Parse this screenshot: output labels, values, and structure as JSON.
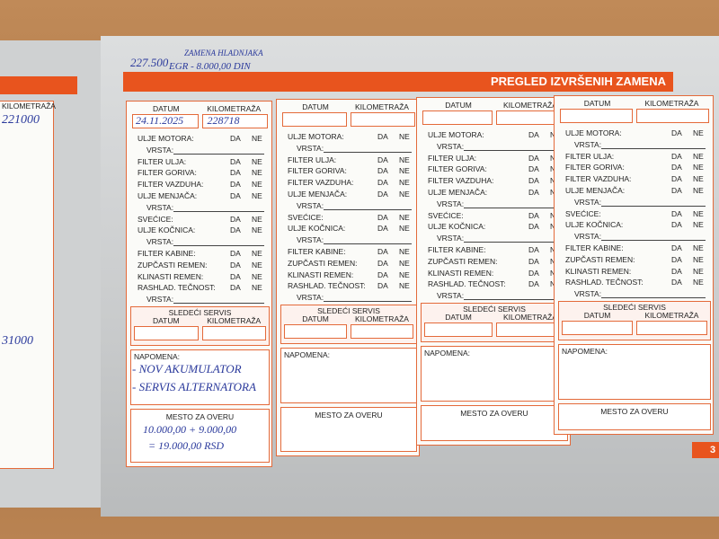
{
  "header": {
    "title": "PREGLED IZVRŠENIH ZAMENA",
    "page_number": "3"
  },
  "handwriting": {
    "lines": [
      "227.500",
      "ZAMENA HLADNJAKA",
      "EGR - 8.000,00 DIN"
    ]
  },
  "form": {
    "date_label": "DATUM",
    "km_label": "KILOMETRAŽA",
    "next_service": "SLEDEĆI  SERVIS",
    "note_label": "NAPOMENA:",
    "stamp_label": "MESTO ZA OVERU",
    "items": [
      {
        "label": "ULJE MOTORA:",
        "yes": "DA",
        "no": "NE"
      },
      {
        "label": "VRSTA:"
      },
      {
        "label": "FILTER ULJA:",
        "yes": "DA",
        "no": "NE"
      },
      {
        "label": "FILTER GORIVA:",
        "yes": "DA",
        "no": "NE"
      },
      {
        "label": "FILTER VAZDUHA:",
        "yes": "DA",
        "no": "NE"
      },
      {
        "label": "ULJE MENJAČA:",
        "yes": "DA",
        "no": "NE"
      },
      {
        "label": "VRSTA:"
      },
      {
        "label": "SVEĆICE:",
        "yes": "DA",
        "no": "NE"
      },
      {
        "label": "ULJE KOČNICA:",
        "yes": "DA",
        "no": "NE"
      },
      {
        "label": "VRSTA:"
      },
      {
        "label": "FILTER KABINE:",
        "yes": "DA",
        "no": "NE"
      },
      {
        "label": "ZUPČASTI REMEN:",
        "yes": "DA",
        "no": "NE"
      },
      {
        "label": "KLINASTI REMEN:",
        "yes": "DA",
        "no": "NE"
      },
      {
        "label": "RASHLAD. TEČNOST:",
        "yes": "DA",
        "no": "NE"
      },
      {
        "label": "VRSTA:"
      }
    ]
  },
  "cards": [
    {
      "date": "24.11.2025",
      "km": "228718",
      "note_lines": [
        "- NOV AKUMULATOR",
        "- SERVIS ALTERNATORA"
      ],
      "stamp_lines": [
        "10.000,00 + 9.000,00",
        "= 19.000,00 RSD"
      ]
    },
    {},
    {},
    {}
  ],
  "left_page": {
    "km_label": "KILOMETRAŽA",
    "km": "221000",
    "next_km": "31000"
  }
}
